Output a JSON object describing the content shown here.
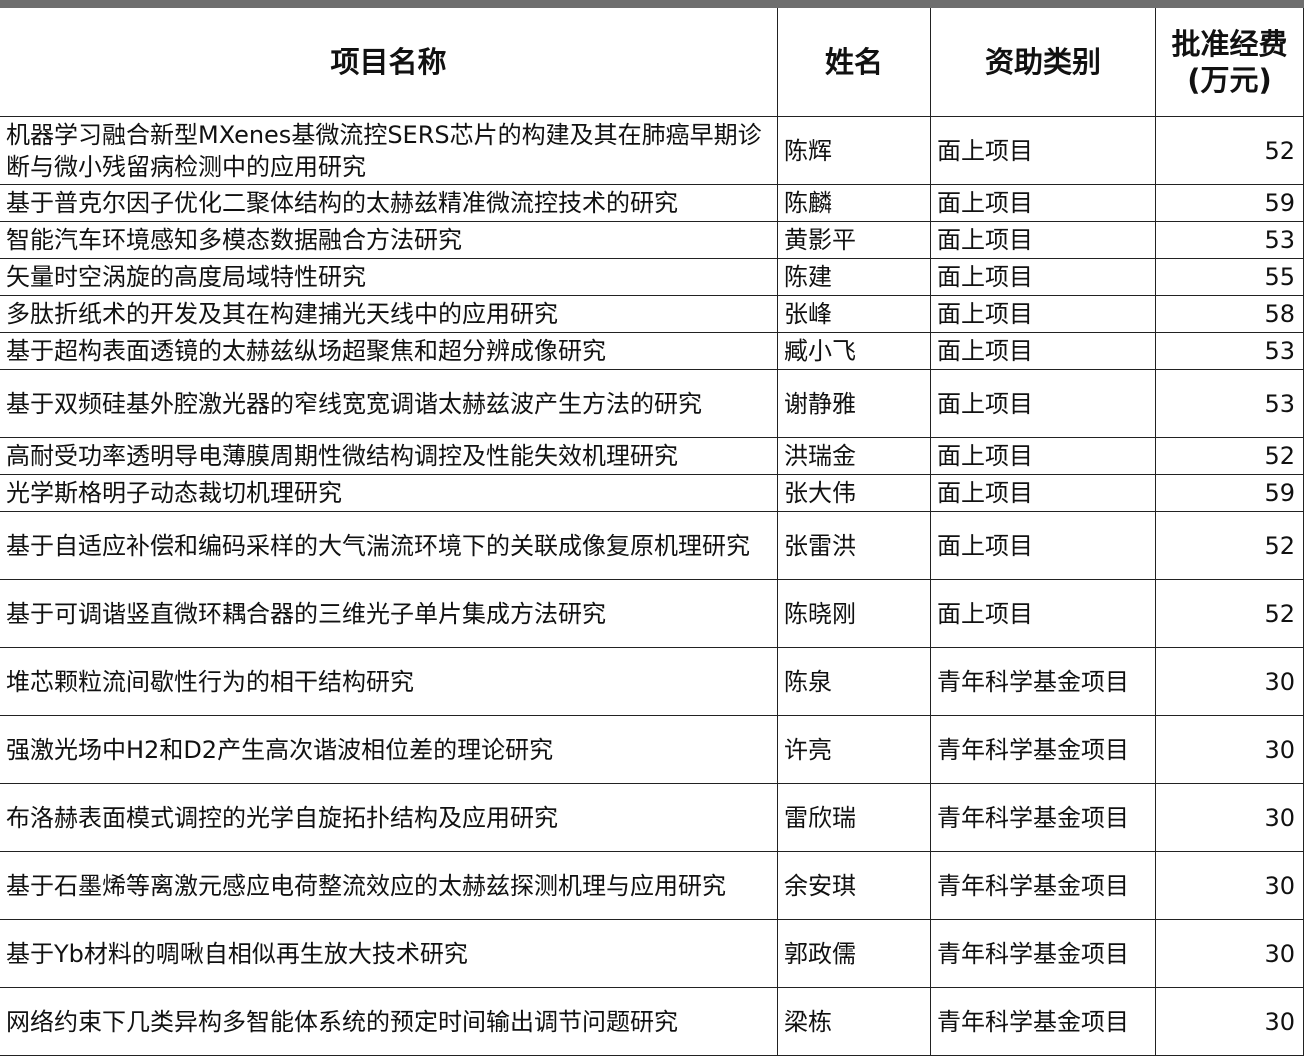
{
  "table": {
    "header": [
      "项目名称",
      "姓名",
      "资助类别",
      [
        "批准经费",
        "(万元)"
      ]
    ],
    "rows": [
      [
        "机器学习融合新型MXenes基微流控SERS芯片的构建及其在肺癌早期诊断与微小残留病检测中的应用研究",
        "陈辉",
        "面上项目",
        52
      ],
      [
        "基于普克尔因子优化二聚体结构的太赫兹精准微流控技术的研究",
        "陈麟",
        "面上项目",
        59
      ],
      [
        "智能汽车环境感知多模态数据融合方法研究",
        "黄影平",
        "面上项目",
        53
      ],
      [
        "矢量时空涡旋的高度局域特性研究",
        "陈建",
        "面上项目",
        55
      ],
      [
        "多肽折纸术的开发及其在构建捕光天线中的应用研究",
        "张峰",
        "面上项目",
        58
      ],
      [
        "基于超构表面透镜的太赫兹纵场超聚焦和超分辨成像研究",
        "臧小飞",
        "面上项目",
        53
      ],
      [
        "基于双频硅基外腔激光器的窄线宽宽调谐太赫兹波产生方法的研究",
        "谢静雅",
        "面上项目",
        53
      ],
      [
        "高耐受功率透明导电薄膜周期性微结构调控及性能失效机理研究",
        "洪瑞金",
        "面上项目",
        52
      ],
      [
        "光学斯格明子动态裁切机理研究",
        "张大伟",
        "面上项目",
        59
      ],
      [
        "基于自适应补偿和编码采样的大气湍流环境下的关联成像复原机理研究",
        "张雷洪",
        "面上项目",
        52
      ],
      [
        "基于可调谐竖直微环耦合器的三维光子单片集成方法研究",
        "陈晓刚",
        "面上项目",
        52
      ],
      [
        "堆芯颗粒流间歇性行为的相干结构研究",
        "陈泉",
        "青年科学基金项目",
        30
      ],
      [
        "强激光场中H2和D2产生高次谐波相位差的理论研究",
        "许亮",
        "青年科学基金项目",
        30
      ],
      [
        "布洛赫表面模式调控的光学自旋拓扑结构及应用研究",
        "雷欣瑞",
        "青年科学基金项目",
        30
      ],
      [
        "基于石墨烯等离激元感应电荷整流效应的太赫兹探测机理与应用研究",
        "余安琪",
        "青年科学基金项目",
        30
      ],
      [
        "基于Yb材料的啁啾自相似再生放大技术研究",
        "郭政儒",
        "青年科学基金项目",
        30
      ],
      [
        "网络约束下几类异构多智能体系统的预定时间输出调节问题研究",
        "梁栋",
        "青年科学基金项目",
        30
      ]
    ]
  }
}
